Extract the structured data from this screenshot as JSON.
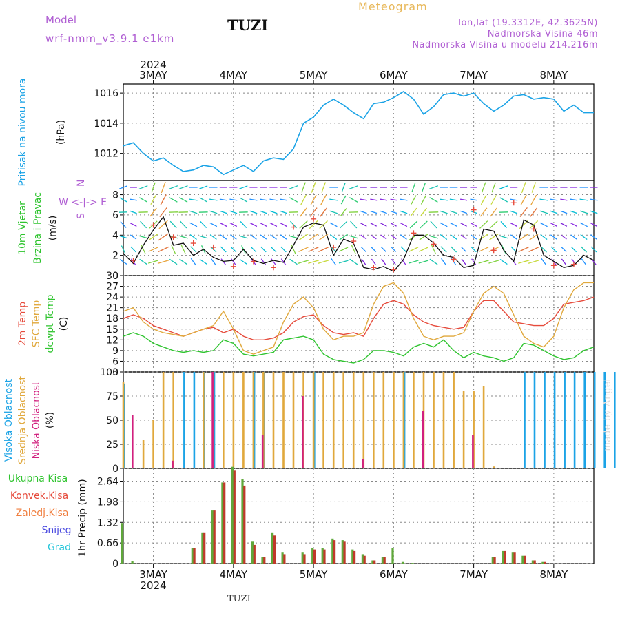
{
  "header": {
    "model_label": "Model",
    "model": "wrf-nmm_v3.9.1 e1km",
    "title": "TUZI",
    "meteogram": "Meteogram",
    "lonlat": "lon,lat (19.3312E, 42.3625N)",
    "elev": "Nadmorska Visina 46m",
    "elev_model": "Nadmorska Visina u modelu 214.216m"
  },
  "footer": "TUZI",
  "watermark": "made by Angel",
  "colors": {
    "pressure": "#1ba3e6",
    "t2m": "#e64b3c",
    "sfc": "#e0a83c",
    "dewpt": "#2fc42f",
    "wind_speed": "#111111",
    "wind_gust": "#e64b3c",
    "high_cloud": "#1ba3e6",
    "mid_cloud": "#e0a83c",
    "low_cloud": "#d1207e",
    "precip_total": "#5fa83a",
    "precip_conv": "#c0392b"
  },
  "chart_data": [
    {
      "type": "line",
      "panel": "pressure",
      "title": "",
      "year": "2024",
      "dates": [
        "3MAY",
        "4MAY",
        "5MAY",
        "6MAY",
        "7MAY",
        "8MAY"
      ],
      "ylabel_lines": [
        "Pritisak na nivou mora",
        "(hPa)"
      ],
      "yticks": [
        1012,
        1014,
        1016
      ],
      "ylim": [
        1010.2,
        1016.6
      ],
      "series": [
        {
          "x": [
            0,
            3,
            6,
            9,
            12,
            15,
            18,
            21,
            24,
            27,
            30,
            33,
            36,
            39,
            42,
            45,
            48,
            51,
            54,
            57,
            60,
            63,
            66,
            69,
            72,
            75,
            78,
            81,
            84,
            87,
            90,
            93,
            96,
            99,
            102,
            105,
            108,
            111,
            114,
            117,
            120,
            123,
            126,
            129,
            132,
            135,
            138,
            141
          ],
          "values": [
            1012.5,
            1012.7,
            1012.0,
            1011.5,
            1011.7,
            1011.2,
            1010.8,
            1010.9,
            1011.2,
            1011.1,
            1010.6,
            1010.9,
            1011.2,
            1010.8,
            1011.5,
            1011.7,
            1011.6,
            1012.3,
            1014.0,
            1014.4,
            1015.2,
            1015.6,
            1015.2,
            1014.7,
            1014.3,
            1015.3,
            1015.4,
            1015.7,
            1016.1,
            1015.6,
            1014.6,
            1015.1,
            1015.9,
            1016.0,
            1015.8,
            1016.0,
            1015.3,
            1014.8,
            1015.2,
            1015.8,
            1015.9,
            1015.6,
            1015.7,
            1015.6,
            1014.8,
            1015.2,
            1014.7,
            1014.7
          ]
        }
      ]
    },
    {
      "type": "line",
      "panel": "wind",
      "ylabel_lines": [
        "10m Vjetar",
        "Brzina i Pravac",
        "(m/s)"
      ],
      "direction_legend": [
        "N",
        "W <-|-> E",
        "S"
      ],
      "yticks": [
        0,
        2,
        4,
        6,
        8
      ],
      "ylim": [
        0,
        9.4
      ],
      "series": [
        {
          "name": "speed",
          "x": [
            0,
            3,
            6,
            9,
            12,
            15,
            18,
            21,
            24,
            27,
            30,
            33,
            36,
            39,
            42,
            45,
            48,
            51,
            54,
            57,
            60,
            63,
            66,
            69,
            72,
            75,
            78,
            81,
            84,
            87,
            90,
            93,
            96,
            99,
            102,
            105,
            108,
            111,
            114,
            117,
            120,
            123,
            126,
            129,
            132,
            135,
            138,
            141
          ],
          "values": [
            2.2,
            1.2,
            3.0,
            4.5,
            5.8,
            3.0,
            3.2,
            2.0,
            2.6,
            1.8,
            1.4,
            1.5,
            2.6,
            1.5,
            1.2,
            1.5,
            1.3,
            3.0,
            4.8,
            5.2,
            5.0,
            2.0,
            3.6,
            3.2,
            0.8,
            0.6,
            0.9,
            0.4,
            1.6,
            4.0,
            4.0,
            3.2,
            2.0,
            1.8,
            0.8,
            1.0,
            4.6,
            4.4,
            2.5,
            1.4,
            5.5,
            5.0,
            2.0,
            1.4,
            0.8,
            1.0,
            2.0,
            1.5
          ]
        },
        {
          "name": "gust",
          "x": [
            3,
            9,
            15,
            21,
            27,
            33,
            39,
            45,
            51,
            57,
            63,
            69,
            75,
            81,
            87,
            93,
            99,
            105,
            111,
            117,
            123,
            129,
            135
          ],
          "values": [
            1.5,
            5.0,
            3.8,
            3.2,
            2.8,
            0.9,
            1.4,
            0.8,
            4.8,
            5.6,
            2.8,
            3.4,
            0.8,
            0.6,
            4.2,
            3.1,
            1.6,
            6.5,
            2.5,
            7.2,
            4.6,
            1.0,
            1.1
          ]
        }
      ]
    },
    {
      "type": "line",
      "panel": "temperature",
      "ylabel_lines": [
        "2m Temp",
        "SFC Temp",
        "dewpt Temp",
        "(C)"
      ],
      "yticks": [
        3,
        6,
        9,
        12,
        15,
        18,
        21,
        24,
        27,
        30
      ],
      "ylim": [
        3,
        30
      ],
      "x": [
        0,
        3,
        6,
        9,
        12,
        15,
        18,
        21,
        24,
        27,
        30,
        33,
        36,
        39,
        42,
        45,
        48,
        51,
        54,
        57,
        60,
        63,
        66,
        69,
        72,
        75,
        78,
        81,
        84,
        87,
        90,
        93,
        96,
        99,
        102,
        105,
        108,
        111,
        114,
        117,
        120,
        123,
        126,
        129,
        132,
        135,
        138,
        141
      ],
      "series": [
        {
          "name": "2m Temp",
          "values": [
            18,
            19,
            18,
            16,
            15,
            14,
            13,
            14,
            15,
            15.5,
            14,
            15,
            13,
            12,
            12,
            12.5,
            14,
            17,
            18.5,
            19,
            16,
            14,
            13.5,
            14,
            13,
            18,
            22,
            23,
            22,
            19,
            17,
            16,
            15.5,
            15,
            15.5,
            20,
            23,
            23,
            20,
            17,
            16.5,
            16,
            16,
            18,
            22,
            22.5,
            23,
            24
          ]
        },
        {
          "name": "SFC Temp",
          "values": [
            20,
            21,
            17,
            15,
            14,
            13.5,
            13,
            14,
            15,
            16,
            20,
            15,
            9,
            8,
            9,
            10,
            17,
            22,
            24,
            21,
            15,
            12,
            13,
            13,
            14,
            22,
            27,
            28,
            25,
            18,
            13,
            12,
            13,
            13,
            14,
            20,
            25,
            27,
            25,
            19,
            13,
            11,
            10,
            13,
            21,
            26,
            28,
            28
          ]
        },
        {
          "name": "dewpt Temp",
          "values": [
            13,
            14,
            13,
            11,
            10,
            9,
            8.5,
            9,
            8.5,
            9,
            12,
            11,
            8,
            7.5,
            8,
            8.5,
            12,
            12.5,
            13,
            12,
            8,
            6.5,
            6,
            5.5,
            6.5,
            9,
            9,
            8.5,
            7.5,
            10,
            11,
            10,
            12,
            9,
            7,
            8.5,
            7.5,
            7,
            6,
            7,
            11,
            10.5,
            9,
            7.5,
            6.5,
            7,
            9,
            10
          ]
        }
      ]
    },
    {
      "type": "bar",
      "panel": "clouds",
      "ylabel_lines": [
        "Visoka Oblacnost",
        "Srednja Oblacnost",
        "Niska Oblacnost",
        "(%)"
      ],
      "yticks": [
        0,
        25,
        50,
        75,
        100
      ],
      "ylim": [
        0,
        100
      ],
      "series": [
        {
          "name": "Visoka Oblacnost",
          "x": [
            0,
            6,
            7,
            8,
            9,
            13,
            14,
            19,
            28,
            40,
            41,
            42,
            43,
            44,
            45,
            46,
            47,
            48,
            49,
            50,
            51,
            52,
            53,
            54,
            55,
            56,
            57,
            58,
            59,
            60,
            61,
            62,
            63,
            64,
            65,
            66,
            67,
            68
          ],
          "values": [
            88,
            100,
            100,
            100,
            100,
            100,
            100,
            100,
            100,
            100,
            100,
            100,
            100,
            100,
            100,
            100,
            100,
            100,
            100,
            100,
            100,
            100,
            100,
            100,
            100,
            100,
            100,
            100,
            100,
            100,
            30,
            28,
            27,
            100,
            100,
            100,
            100,
            100
          ]
        },
        {
          "name": "Srednja Oblacnost",
          "x": [
            0,
            2,
            3,
            4,
            5,
            8,
            9,
            10,
            11,
            12,
            13,
            14,
            15,
            16,
            17,
            18,
            19,
            20,
            21,
            22,
            23,
            24,
            25,
            26,
            27,
            28,
            29,
            30,
            31,
            32,
            33,
            34,
            35,
            36,
            37,
            38
          ],
          "values": [
            90,
            30,
            50,
            100,
            100,
            100,
            100,
            100,
            100,
            100,
            100,
            100,
            100,
            100,
            100,
            100,
            100,
            100,
            100,
            100,
            100,
            100,
            100,
            100,
            100,
            100,
            100,
            100,
            100,
            100,
            100,
            80,
            80,
            85,
            2,
            0
          ]
        },
        {
          "name": "Niska Oblacnost",
          "x": [
            1,
            5,
            9,
            14,
            18,
            24,
            30,
            35
          ],
          "values": [
            55,
            8,
            100,
            35,
            75,
            10,
            60,
            35
          ]
        }
      ]
    },
    {
      "type": "bar",
      "panel": "precipitation",
      "ylabel_lines": [
        "1hr Precip (mm)"
      ],
      "legend": [
        "Ukupna Kisa",
        "Konvek.Kisa",
        "Zaledj.Kisa",
        "Snijeg",
        "Grad"
      ],
      "yticks": [
        0,
        0.66,
        1.32,
        1.98,
        2.64
      ],
      "ylim": [
        0,
        3.05
      ],
      "x": [
        0,
        1,
        7,
        8,
        9,
        10,
        11,
        12,
        13,
        14,
        15,
        16,
        18,
        19,
        20,
        21,
        22,
        23,
        24,
        25,
        26,
        27,
        28,
        29,
        30,
        31,
        37,
        38,
        39,
        40,
        41,
        42
      ],
      "series": [
        {
          "name": "Ukupna Kisa",
          "values": [
            1.3,
            0.08,
            0.5,
            1.0,
            1.7,
            2.6,
            3.1,
            2.7,
            0.7,
            0.2,
            1.0,
            0.35,
            0.35,
            0.5,
            0.5,
            0.8,
            0.75,
            0.45,
            0.3,
            0.1,
            0.2,
            0.5,
            0.05,
            0.02,
            0.0,
            0.0,
            0.2,
            0.4,
            0.35,
            0.25,
            0.1,
            0.05
          ]
        },
        {
          "name": "Konvek.Kisa",
          "values": [
            0,
            0,
            0.5,
            1.0,
            1.7,
            2.6,
            3.0,
            2.5,
            0.6,
            0.2,
            0.9,
            0.3,
            0.3,
            0.45,
            0.45,
            0.75,
            0.7,
            0.4,
            0.25,
            0.1,
            0.2,
            0,
            0,
            0,
            0,
            0,
            0.2,
            0.4,
            0.35,
            0.25,
            0.1,
            0.05
          ]
        }
      ]
    }
  ]
}
